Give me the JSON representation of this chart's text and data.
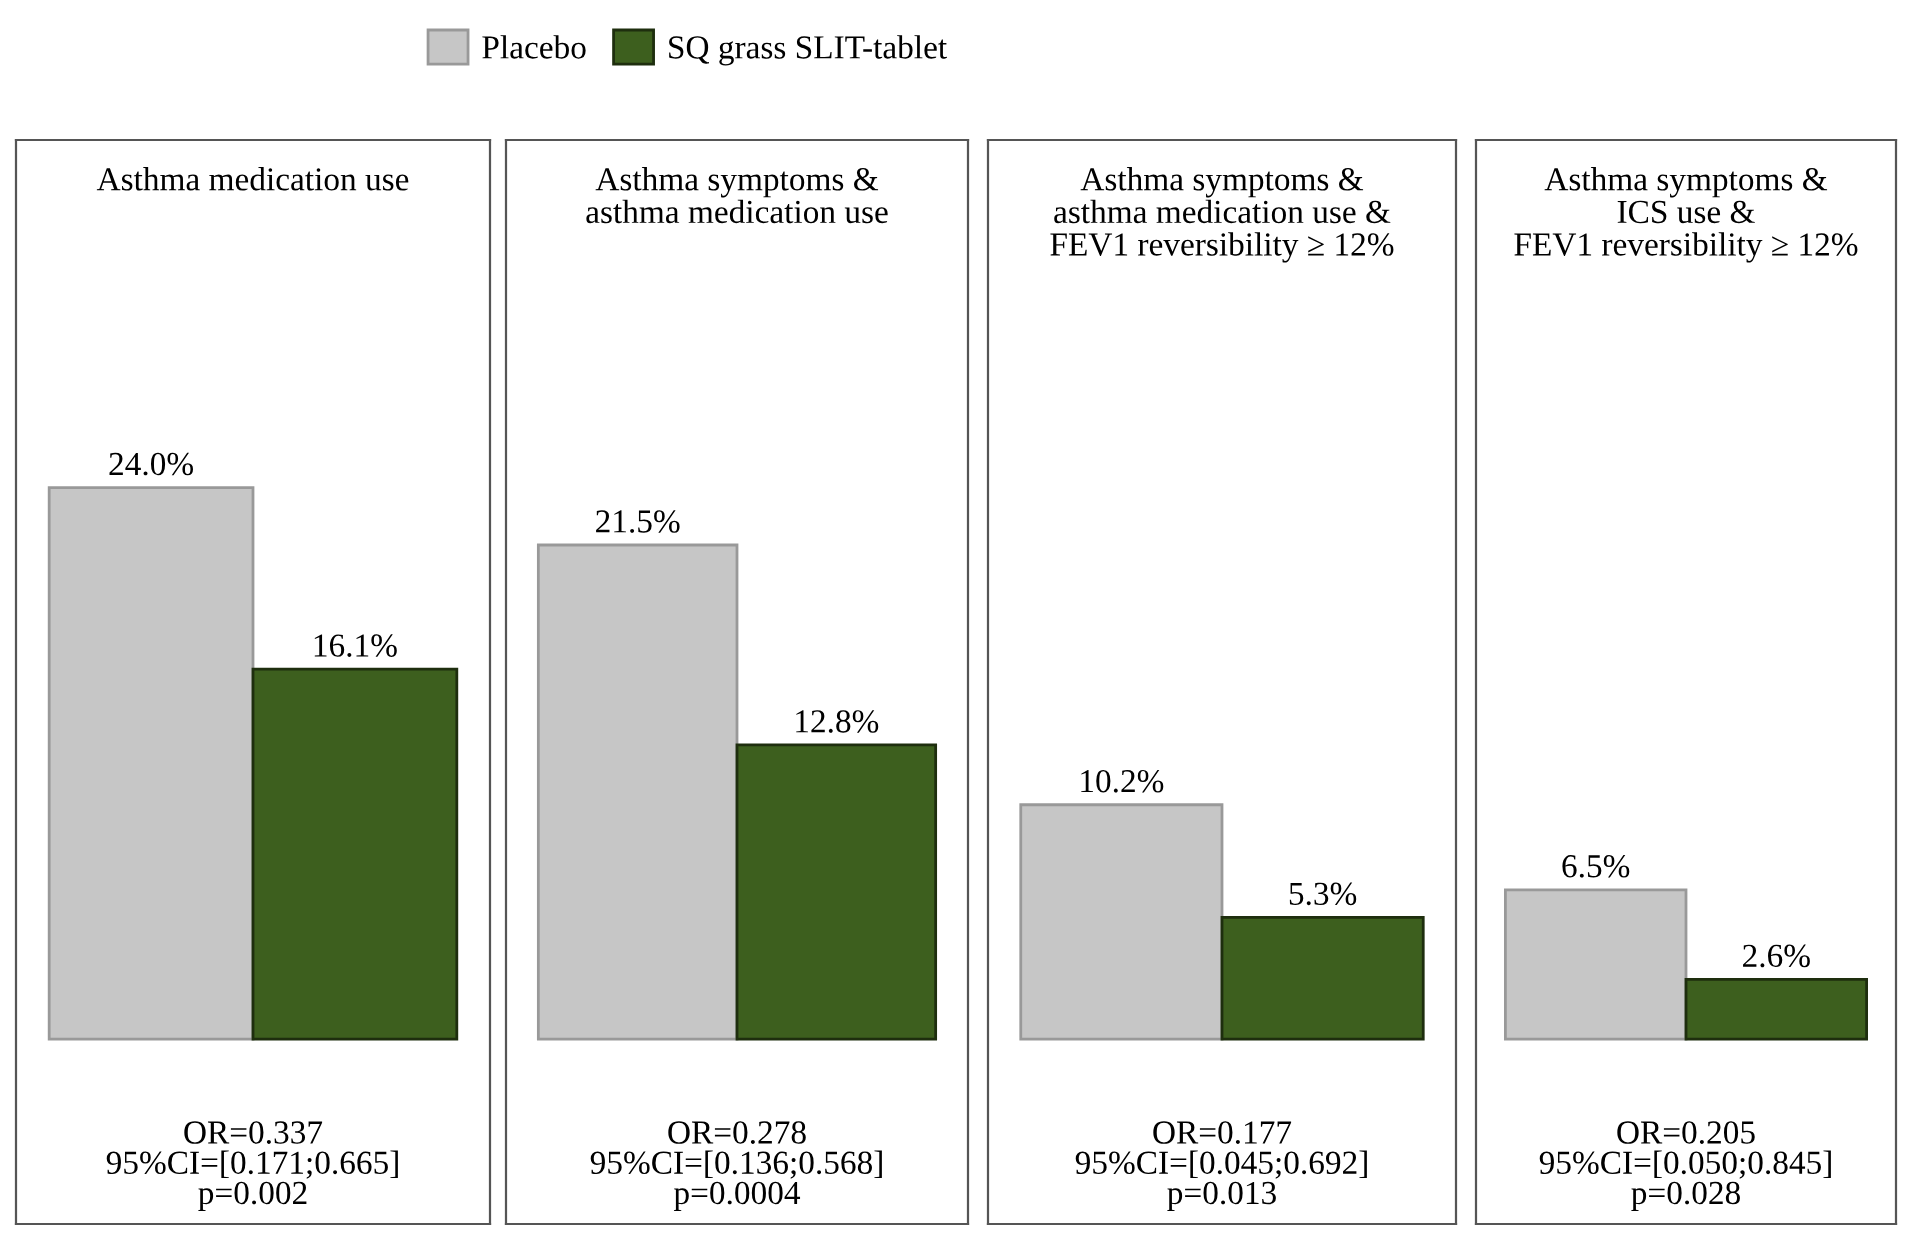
{
  "chart_data": [
    {
      "type": "bar",
      "title": "Asthma medication use",
      "categories": [
        null
      ],
      "legend": "top",
      "series": [
        {
          "name": "Placebo",
          "color": "#c6c6c6",
          "values": [
            24.0
          ],
          "value_labels": [
            "24.0%"
          ]
        },
        {
          "name": "SQ grass SLIT-tablet",
          "color": "#3d5f1e",
          "values": [
            16.1
          ],
          "value_labels": [
            "16.1%"
          ]
        }
      ],
      "annotations": [
        "OR=0.337",
        "95%CI=[0.171;0.665]",
        "p=0.002"
      ]
    },
    {
      "type": "bar",
      "title": "Asthma symptoms &\nasthma medication use",
      "categories": [
        null
      ],
      "series": [
        {
          "color": "#c6c6c6",
          "values": [
            21.5
          ],
          "value_labels": [
            "21.5%"
          ]
        },
        {
          "color": "#3d5f1e",
          "values": [
            12.8
          ],
          "value_labels": [
            "12.8%"
          ]
        }
      ],
      "annotations": [
        "OR=0.278",
        "95%CI=[0.136;0.568]",
        "p=0.0004"
      ]
    },
    {
      "type": "bar",
      "title": "Asthma symptoms &\nasthma medication use &\nFEV1 reversibility ≥ 12%",
      "categories": [
        null
      ],
      "series": [
        {
          "color": "#c6c6c6",
          "values": [
            10.2
          ],
          "value_labels": [
            "10.2%"
          ]
        },
        {
          "color": "#3d5f1e",
          "values": [
            5.3
          ],
          "value_labels": [
            "5.3%"
          ]
        }
      ],
      "annotations": [
        "OR=0.177",
        "95%CI=[0.045;0.692]",
        "p=0.013"
      ]
    },
    {
      "type": "bar",
      "title": "Asthma symptoms &\nICS use &\nFEV1 reversibility ≥ 12%",
      "categories": [
        null
      ],
      "series": [
        {
          "color": "#c6c6c6",
          "values": [
            6.5
          ],
          "value_labels": [
            "6.5%"
          ]
        },
        {
          "color": "#3d5f1e",
          "values": [
            2.6
          ],
          "value_labels": [
            "2.6%"
          ]
        }
      ],
      "annotations": [
        "OR=0.205",
        "95%CI=[0.050;0.845]",
        "p=0.028"
      ]
    }
  ]
}
